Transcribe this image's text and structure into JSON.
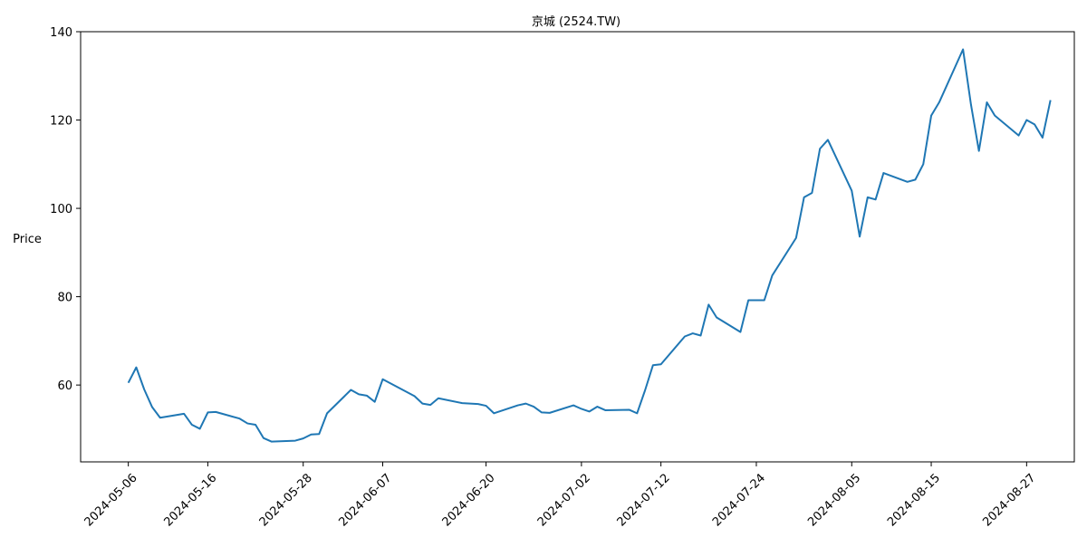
{
  "chart_data": {
    "type": "line",
    "title": "京城 (2524.TW)",
    "xlabel": "",
    "ylabel": "Price",
    "ylabel_color": "#0000ff",
    "line_color": "#1f77b4",
    "grid": false,
    "ylim": [
      42.6,
      140.0
    ],
    "yticks": [
      60,
      80,
      100,
      120,
      140
    ],
    "xticks": [
      "2024-05-06",
      "2024-05-16",
      "2024-05-28",
      "2024-06-07",
      "2024-06-20",
      "2024-07-02",
      "2024-07-12",
      "2024-07-24",
      "2024-08-05",
      "2024-08-15",
      "2024-08-27"
    ],
    "xlim": [
      "2024-05-00",
      "2024-09-02"
    ],
    "series": [
      {
        "points": [
          [
            "2024-05-06",
            60.5
          ],
          [
            "2024-05-07",
            64.0
          ],
          [
            "2024-05-08",
            59.0
          ],
          [
            "2024-05-09",
            55.0
          ],
          [
            "2024-05-10",
            52.6
          ],
          [
            "2024-05-13",
            53.5
          ],
          [
            "2024-05-14",
            51.0
          ],
          [
            "2024-05-15",
            50.1
          ],
          [
            "2024-05-16",
            53.8
          ],
          [
            "2024-05-17",
            53.9
          ],
          [
            "2024-05-20",
            52.4
          ],
          [
            "2024-05-21",
            51.3
          ],
          [
            "2024-05-22",
            51.0
          ],
          [
            "2024-05-23",
            48.0
          ],
          [
            "2024-05-24",
            47.2
          ],
          [
            "2024-05-27",
            47.4
          ],
          [
            "2024-05-28",
            47.9
          ],
          [
            "2024-05-29",
            48.8
          ],
          [
            "2024-05-30",
            48.9
          ],
          [
            "2024-05-31",
            53.6
          ],
          [
            "2024-06-03",
            58.9
          ],
          [
            "2024-06-04",
            57.9
          ],
          [
            "2024-06-05",
            57.6
          ],
          [
            "2024-06-06",
            56.2
          ],
          [
            "2024-06-07",
            61.3
          ],
          [
            "2024-06-11",
            57.5
          ],
          [
            "2024-06-12",
            55.8
          ],
          [
            "2024-06-13",
            55.5
          ],
          [
            "2024-06-14",
            57.0
          ],
          [
            "2024-06-17",
            55.9
          ],
          [
            "2024-06-18",
            55.8
          ],
          [
            "2024-06-19",
            55.7
          ],
          [
            "2024-06-20",
            55.3
          ],
          [
            "2024-06-21",
            53.6
          ],
          [
            "2024-06-24",
            55.4
          ],
          [
            "2024-06-25",
            55.8
          ],
          [
            "2024-06-26",
            55.1
          ],
          [
            "2024-06-27",
            53.8
          ],
          [
            "2024-06-28",
            53.7
          ],
          [
            "2024-07-01",
            55.4
          ],
          [
            "2024-07-02",
            54.6
          ],
          [
            "2024-07-03",
            54.0
          ],
          [
            "2024-07-04",
            55.1
          ],
          [
            "2024-07-05",
            54.3
          ],
          [
            "2024-07-08",
            54.4
          ],
          [
            "2024-07-09",
            53.6
          ],
          [
            "2024-07-10",
            58.8
          ],
          [
            "2024-07-11",
            64.5
          ],
          [
            "2024-07-12",
            64.7
          ],
          [
            "2024-07-15",
            71.0
          ],
          [
            "2024-07-16",
            71.7
          ],
          [
            "2024-07-17",
            71.2
          ],
          [
            "2024-07-18",
            78.2
          ],
          [
            "2024-07-19",
            75.3
          ],
          [
            "2024-07-22",
            72.0
          ],
          [
            "2024-07-23",
            79.2
          ],
          [
            "2024-07-24",
            79.2
          ],
          [
            "2024-07-25",
            79.2
          ],
          [
            "2024-07-26",
            84.8
          ],
          [
            "2024-07-29",
            93.3
          ],
          [
            "2024-07-30",
            102.5
          ],
          [
            "2024-07-31",
            103.5
          ],
          [
            "2024-08-01",
            113.5
          ],
          [
            "2024-08-02",
            115.5
          ],
          [
            "2024-08-05",
            104.0
          ],
          [
            "2024-08-06",
            93.6
          ],
          [
            "2024-08-07",
            102.5
          ],
          [
            "2024-08-08",
            102.0
          ],
          [
            "2024-08-09",
            108.0
          ],
          [
            "2024-08-12",
            106.0
          ],
          [
            "2024-08-13",
            106.5
          ],
          [
            "2024-08-14",
            110.0
          ],
          [
            "2024-08-15",
            121.0
          ],
          [
            "2024-08-16",
            124.0
          ],
          [
            "2024-08-19",
            136.0
          ],
          [
            "2024-08-20",
            123.5
          ],
          [
            "2024-08-21",
            113.0
          ],
          [
            "2024-08-22",
            124.0
          ],
          [
            "2024-08-23",
            121.0
          ],
          [
            "2024-08-26",
            116.5
          ],
          [
            "2024-08-27",
            120.0
          ],
          [
            "2024-08-28",
            119.0
          ],
          [
            "2024-08-29",
            116.0
          ],
          [
            "2024-08-30",
            124.5
          ]
        ]
      }
    ]
  }
}
